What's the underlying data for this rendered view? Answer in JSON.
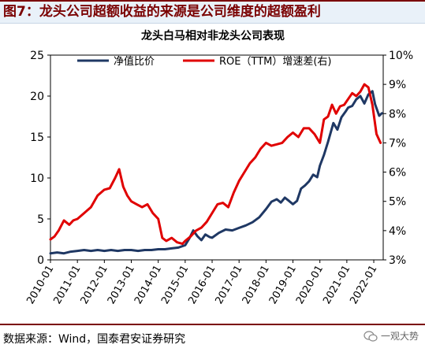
{
  "figure": {
    "title": "图7：龙头公司超额收益的来源是公司维度的超额盈利",
    "source": "数据来源：Wind，国泰君安证券研究",
    "watermark": "一观大势"
  },
  "chart_data": {
    "type": "line",
    "title": "龙头白马相对非龙头公司表现",
    "x_ticks": [
      "2010-01",
      "2011-01",
      "2012-01",
      "2013-01",
      "2014-01",
      "2015-01",
      "2016-01",
      "2017-01",
      "2018-01",
      "2019-01",
      "2020-01",
      "2021-01",
      "2022-01"
    ],
    "x_range": [
      2010.0,
      2022.35
    ],
    "y_left": {
      "range": [
        0,
        25
      ],
      "ticks": [
        "0",
        "5",
        "10",
        "15",
        "20",
        "25"
      ]
    },
    "y_right": {
      "range": [
        3,
        10
      ],
      "ticks": [
        "3%",
        "4%",
        "5%",
        "6%",
        "7%",
        "8%",
        "9%",
        "10%"
      ]
    },
    "legend_position": "top",
    "series": [
      {
        "name": "净值比价",
        "axis": "left",
        "color": "#1f3864",
        "x": [
          2010.0,
          2010.25,
          2010.5,
          2010.75,
          2011.0,
          2011.25,
          2011.5,
          2011.75,
          2012.0,
          2012.25,
          2012.5,
          2012.75,
          2013.0,
          2013.25,
          2013.5,
          2013.75,
          2014.0,
          2014.25,
          2014.5,
          2014.75,
          2015.0,
          2015.15,
          2015.3,
          2015.45,
          2015.6,
          2015.75,
          2015.9,
          2016.0,
          2016.25,
          2016.5,
          2016.75,
          2017.0,
          2017.25,
          2017.5,
          2017.75,
          2018.0,
          2018.2,
          2018.4,
          2018.55,
          2018.7,
          2018.85,
          2019.0,
          2019.15,
          2019.3,
          2019.45,
          2019.6,
          2019.75,
          2019.9,
          2020.0,
          2020.15,
          2020.3,
          2020.5,
          2020.65,
          2020.8,
          2020.95,
          2021.05,
          2021.2,
          2021.35,
          2021.5,
          2021.65,
          2021.8,
          2021.95,
          2022.05,
          2022.2,
          2022.3
        ],
        "values": [
          0.8,
          0.9,
          0.8,
          1.0,
          1.1,
          1.2,
          1.1,
          1.2,
          1.1,
          1.2,
          1.1,
          1.2,
          1.2,
          1.1,
          1.2,
          1.2,
          1.3,
          1.3,
          1.4,
          1.5,
          1.8,
          2.6,
          3.6,
          2.9,
          2.4,
          3.1,
          2.8,
          2.7,
          3.3,
          3.7,
          3.6,
          3.9,
          4.2,
          4.6,
          5.2,
          6.2,
          7.1,
          7.4,
          7.0,
          7.6,
          7.2,
          6.8,
          7.2,
          8.7,
          9.1,
          9.6,
          10.4,
          10.1,
          11.5,
          12.8,
          14.4,
          16.7,
          15.9,
          17.4,
          18.1,
          18.6,
          18.8,
          19.6,
          20.0,
          19.1,
          20.2,
          20.6,
          19.0,
          17.6,
          17.9
        ]
      },
      {
        "name": "ROE（TTM）增速差(右)",
        "axis": "right",
        "color": "#e00000",
        "x": [
          2010.0,
          2010.15,
          2010.3,
          2010.5,
          2010.7,
          2010.85,
          2011.0,
          2011.25,
          2011.5,
          2011.75,
          2012.0,
          2012.2,
          2012.4,
          2012.55,
          2012.7,
          2012.85,
          2013.0,
          2013.2,
          2013.4,
          2013.6,
          2013.8,
          2014.0,
          2014.15,
          2014.3,
          2014.5,
          2014.7,
          2014.9,
          2015.0,
          2015.2,
          2015.4,
          2015.6,
          2015.8,
          2016.0,
          2016.2,
          2016.4,
          2016.6,
          2016.8,
          2017.0,
          2017.2,
          2017.4,
          2017.6,
          2017.8,
          2018.0,
          2018.2,
          2018.4,
          2018.6,
          2018.8,
          2019.0,
          2019.2,
          2019.4,
          2019.6,
          2019.8,
          2020.0,
          2020.15,
          2020.3,
          2020.45,
          2020.6,
          2020.75,
          2020.9,
          2021.05,
          2021.2,
          2021.35,
          2021.5,
          2021.65,
          2021.8,
          2021.95,
          2022.1,
          2022.25
        ],
        "values": [
          3.7,
          3.8,
          4.0,
          4.35,
          4.2,
          4.35,
          4.4,
          4.6,
          4.8,
          5.2,
          5.4,
          5.45,
          5.8,
          6.1,
          5.5,
          5.2,
          5.0,
          4.9,
          4.8,
          4.9,
          4.6,
          4.4,
          3.75,
          3.65,
          3.75,
          3.6,
          3.55,
          3.65,
          3.8,
          4.0,
          4.1,
          4.3,
          4.6,
          4.9,
          4.95,
          4.8,
          5.3,
          5.7,
          6.0,
          6.3,
          6.5,
          6.8,
          7.0,
          6.9,
          6.95,
          7.0,
          7.2,
          7.35,
          7.2,
          7.5,
          7.5,
          7.3,
          7.0,
          7.8,
          7.9,
          8.3,
          8.0,
          8.25,
          8.3,
          8.5,
          8.7,
          8.6,
          8.75,
          9.0,
          8.9,
          8.3,
          7.3,
          7.0
        ]
      }
    ]
  }
}
